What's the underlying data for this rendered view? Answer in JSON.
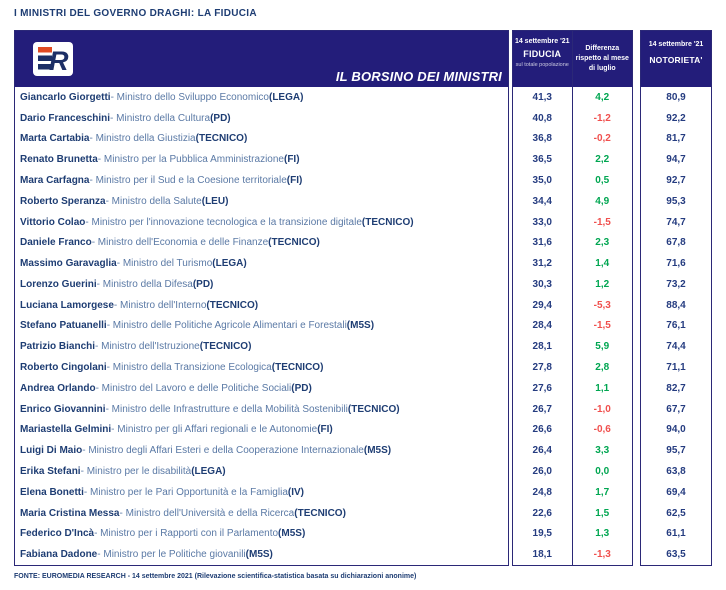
{
  "page_title": "I MINISTRI DEL GOVERNO DRAGHI: LA FIDUCIA",
  "header": {
    "banner_label": "IL BORSINO DEI MINISTRI",
    "logo_text": "ER",
    "fiducia": {
      "date": "14 settembre '21",
      "label": "FIDUCIA",
      "sub": "sul totale popolazione"
    },
    "differenza": {
      "line1": "Differenza",
      "line2": "rispetto al mese",
      "line3": "di luglio"
    },
    "notorieta": {
      "date": "14 settembre '21",
      "label": "NOTORIETA'"
    }
  },
  "colors": {
    "navy_bar": "#231d7a",
    "box_border": "#2b2877",
    "name_text": "#1e3d73",
    "role_text": "#5a79a5",
    "value_text": "#253c80",
    "positive": "#00a651",
    "negative": "#f0504e",
    "logo_accent": "#e04b23"
  },
  "rows": [
    {
      "name": "Giancarlo Giorgetti",
      "role": "Ministro dello Sviluppo Economico",
      "party": "(LEGA)",
      "fiducia": "41,3",
      "diff": "4,2",
      "trend": "pos",
      "notorieta": "80,9"
    },
    {
      "name": "Dario Franceschini",
      "role": "Ministro della Cultura",
      "party": "(PD)",
      "fiducia": "40,8",
      "diff": "-1,2",
      "trend": "neg",
      "notorieta": "92,2"
    },
    {
      "name": "Marta Cartabia",
      "role": "Ministro della Giustizia",
      "party": "(TECNICO)",
      "fiducia": "36,8",
      "diff": "-0,2",
      "trend": "neg",
      "notorieta": "81,7"
    },
    {
      "name": "Renato Brunetta",
      "role": "Ministro per la Pubblica Amministrazione",
      "party": "(FI)",
      "fiducia": "36,5",
      "diff": "2,2",
      "trend": "pos",
      "notorieta": "94,7"
    },
    {
      "name": "Mara Carfagna",
      "role": "Ministro per il Sud e la Coesione territoriale",
      "party": "(FI)",
      "fiducia": "35,0",
      "diff": "0,5",
      "trend": "pos",
      "notorieta": "92,7"
    },
    {
      "name": "Roberto Speranza",
      "role": "Ministro della Salute",
      "party": "(LEU)",
      "fiducia": "34,4",
      "diff": "4,9",
      "trend": "pos",
      "notorieta": "95,3"
    },
    {
      "name": "Vittorio Colao",
      "role": "Ministro per l'innovazione tecnologica e la transizione digitale",
      "party": "(TECNICO)",
      "fiducia": "33,0",
      "diff": "-1,5",
      "trend": "neg",
      "notorieta": "74,7"
    },
    {
      "name": "Daniele Franco",
      "role": "Ministro dell'Economia e delle Finanze",
      "party": "(TECNICO)",
      "fiducia": "31,6",
      "diff": "2,3",
      "trend": "pos",
      "notorieta": "67,8"
    },
    {
      "name": "Massimo Garavaglia",
      "role": "Ministro del Turismo",
      "party": "(LEGA)",
      "fiducia": "31,2",
      "diff": "1,4",
      "trend": "pos",
      "notorieta": "71,6"
    },
    {
      "name": "Lorenzo Guerini",
      "role": "Ministro della Difesa",
      "party": "(PD)",
      "fiducia": "30,3",
      "diff": "1,2",
      "trend": "pos",
      "notorieta": "73,2"
    },
    {
      "name": "Luciana Lamorgese",
      "role": "Ministro dell'Interno",
      "party": "(TECNICO)",
      "fiducia": "29,4",
      "diff": "-5,3",
      "trend": "neg",
      "notorieta": "88,4"
    },
    {
      "name": "Stefano Patuanelli",
      "role": "Ministro delle Politiche Agricole Alimentari e Forestali",
      "party": "(M5S)",
      "fiducia": "28,4",
      "diff": "-1,5",
      "trend": "neg",
      "notorieta": "76,1"
    },
    {
      "name": "Patrizio Bianchi",
      "role": "Ministro dell'Istruzione",
      "party": "(TECNICO)",
      "fiducia": "28,1",
      "diff": "5,9",
      "trend": "pos",
      "notorieta": "74,4"
    },
    {
      "name": "Roberto Cingolani",
      "role": "Ministro della Transizione Ecologica",
      "party": "(TECNICO)",
      "fiducia": "27,8",
      "diff": "2,8",
      "trend": "pos",
      "notorieta": "71,1"
    },
    {
      "name": "Andrea Orlando",
      "role": "Ministro del Lavoro e delle Politiche Sociali",
      "party": "(PD)",
      "fiducia": "27,6",
      "diff": "1,1",
      "trend": "pos",
      "notorieta": "82,7"
    },
    {
      "name": "Enrico Giovannini",
      "role": "Ministro delle Infrastrutture e della Mobilità Sostenibili",
      "party": "(TECNICO)",
      "fiducia": "26,7",
      "diff": "-1,0",
      "trend": "neg",
      "notorieta": "67,7"
    },
    {
      "name": "Mariastella Gelmini",
      "role": "Ministro per gli Affari regionali e le Autonomie",
      "party": "(FI)",
      "fiducia": "26,6",
      "diff": "-0,6",
      "trend": "neg",
      "notorieta": "94,0"
    },
    {
      "name": "Luigi Di Maio",
      "role": "Ministro degli Affari Esteri e della Cooperazione Internazionale",
      "party": "(M5S)",
      "fiducia": "26,4",
      "diff": "3,3",
      "trend": "pos",
      "notorieta": "95,7"
    },
    {
      "name": "Erika Stefani",
      "role": "Ministro per le disabilità",
      "party": "(LEGA)",
      "fiducia": "26,0",
      "diff": "0,0",
      "trend": "pos",
      "notorieta": "63,8"
    },
    {
      "name": "Elena Bonetti",
      "role": "Ministro per le Pari Opportunità e la Famiglia",
      "party": "(IV)",
      "fiducia": "24,8",
      "diff": "1,7",
      "trend": "pos",
      "notorieta": "69,4"
    },
    {
      "name": "Maria Cristina Messa",
      "role": "Ministro dell'Università e della Ricerca",
      "party": "(TECNICO)",
      "fiducia": "22,6",
      "diff": "1,5",
      "trend": "pos",
      "notorieta": "62,5"
    },
    {
      "name": "Federico D'Incà",
      "role": "Ministro per i Rapporti con il Parlamento",
      "party": "(M5S)",
      "fiducia": "19,5",
      "diff": "1,3",
      "trend": "pos",
      "notorieta": "61,1"
    },
    {
      "name": "Fabiana Dadone",
      "role": "Ministro per le Politiche giovanili",
      "party": "(M5S)",
      "fiducia": "18,1",
      "diff": "-1,3",
      "trend": "neg",
      "notorieta": "63,5"
    }
  ],
  "chart_data": {
    "type": "table",
    "title": "I MINISTRI DEL GOVERNO DRAGHI: LA FIDUCIA",
    "columns": [
      "Ministro",
      "FIDUCIA 14 settembre '21 (sul totale popolazione)",
      "Differenza rispetto al mese di luglio",
      "NOTORIETA' 14 settembre '21"
    ],
    "categories": [
      "Giancarlo Giorgetti (LEGA)",
      "Dario Franceschini (PD)",
      "Marta Cartabia (TECNICO)",
      "Renato Brunetta (FI)",
      "Mara Carfagna (FI)",
      "Roberto Speranza (LEU)",
      "Vittorio Colao (TECNICO)",
      "Daniele Franco (TECNICO)",
      "Massimo Garavaglia (LEGA)",
      "Lorenzo Guerini (PD)",
      "Luciana Lamorgese (TECNICO)",
      "Stefano Patuanelli (M5S)",
      "Patrizio Bianchi (TECNICO)",
      "Roberto Cingolani (TECNICO)",
      "Andrea Orlando (PD)",
      "Enrico Giovannini (TECNICO)",
      "Mariastella Gelmini (FI)",
      "Luigi Di Maio (M5S)",
      "Erika Stefani (LEGA)",
      "Elena Bonetti (IV)",
      "Maria Cristina Messa (TECNICO)",
      "Federico D'Incà (M5S)",
      "Fabiana Dadone (M5S)"
    ],
    "series": [
      {
        "name": "Fiducia",
        "values": [
          41.3,
          40.8,
          36.8,
          36.5,
          35.0,
          34.4,
          33.0,
          31.6,
          31.2,
          30.3,
          29.4,
          28.4,
          28.1,
          27.8,
          27.6,
          26.7,
          26.6,
          26.4,
          26.0,
          24.8,
          22.6,
          19.5,
          18.1
        ]
      },
      {
        "name": "Differenza rispetto al mese di luglio",
        "values": [
          4.2,
          -1.2,
          -0.2,
          2.2,
          0.5,
          4.9,
          -1.5,
          2.3,
          1.4,
          1.2,
          -5.3,
          -1.5,
          5.9,
          2.8,
          1.1,
          -1.0,
          -0.6,
          3.3,
          0.0,
          1.7,
          1.5,
          1.3,
          -1.3
        ]
      },
      {
        "name": "Notorietà",
        "values": [
          80.9,
          92.2,
          81.7,
          94.7,
          92.7,
          95.3,
          74.7,
          67.8,
          71.6,
          73.2,
          88.4,
          76.1,
          74.4,
          71.1,
          82.7,
          67.7,
          94.0,
          95.7,
          63.8,
          69.4,
          62.5,
          61.1,
          63.5
        ]
      }
    ]
  },
  "footer": "FONTE: EUROMEDIA RESEARCH - 14 settembre 2021 (Rilevazione scientifica-statistica basata su dichiarazioni anonime)"
}
